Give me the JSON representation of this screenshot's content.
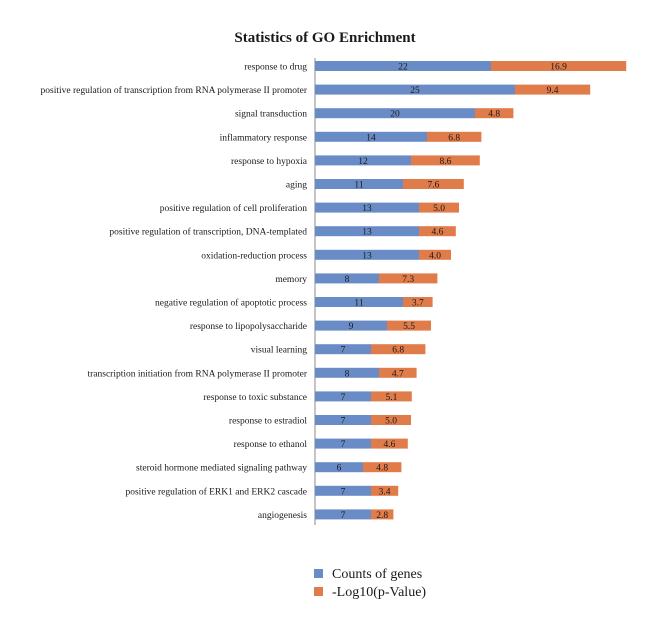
{
  "chart_data": {
    "type": "bar",
    "orientation": "horizontal",
    "stacked": true,
    "title": "Statistics of GO Enrichment",
    "categories": [
      "response to drug",
      "positive regulation of transcription from RNA polymerase II promoter",
      "signal transduction",
      "inflammatory response",
      "response to hypoxia",
      "aging",
      "positive regulation of cell proliferation",
      "positive regulation of transcription, DNA-templated",
      "oxidation-reduction process",
      "memory",
      "negative regulation of apoptotic process",
      "response to lipopolysaccharide",
      "visual learning",
      "transcription initiation from RNA polymerase II promoter",
      "response to toxic substance",
      "response to estradiol",
      "response to ethanol",
      "steroid hormone mediated signaling pathway",
      "positive regulation of ERK1 and ERK2 cascade",
      "angiogenesis"
    ],
    "series": [
      {
        "name": "Counts of genes",
        "color": "#6a8cc6",
        "values": [
          22,
          25,
          20,
          14,
          12,
          11,
          13,
          13,
          13,
          8,
          11,
          9,
          7,
          8,
          7,
          7,
          7,
          6,
          7,
          7
        ],
        "labels": [
          "22",
          "25",
          "20",
          "14",
          "12",
          "11",
          "13",
          "13",
          "13",
          "8",
          "11",
          "9",
          "7",
          "8",
          "7",
          "7",
          "7",
          "6",
          "7",
          "7"
        ]
      },
      {
        "name": "-Log10(p-Value)",
        "color": "#e07b4a",
        "values": [
          16.9,
          9.4,
          4.8,
          6.8,
          8.6,
          7.6,
          5.0,
          4.6,
          4.0,
          7.3,
          3.7,
          5.5,
          6.8,
          4.7,
          5.1,
          5.0,
          4.6,
          4.8,
          3.4,
          2.8
        ],
        "labels": [
          "16.9",
          "9.4",
          "4.8",
          "6.8",
          "8.6",
          "7.6",
          "5.0",
          "4.6",
          "4.0",
          "7.3",
          "3.7",
          "5.5",
          "6.8",
          "4.7",
          "5.1",
          "5.0",
          "4.6",
          "4.8",
          "3.4",
          "2.8"
        ]
      }
    ],
    "legend_position": "bottom",
    "grid": false
  }
}
